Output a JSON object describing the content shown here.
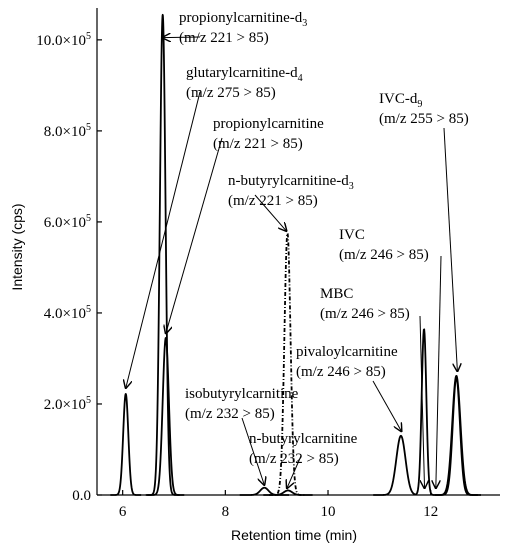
{
  "chart_data": {
    "type": "line",
    "xlabel": "Retention time (min)",
    "ylabel": "Intensity (cps)",
    "xlim": [
      5.5,
      13.35
    ],
    "ylim": [
      0,
      1070000.0
    ],
    "x_ticks": [
      {
        "v": 6,
        "label": "6"
      },
      {
        "v": 8,
        "label": "8"
      },
      {
        "v": 10,
        "label": "10"
      },
      {
        "v": 12,
        "label": "12"
      }
    ],
    "y_ticks": [
      {
        "v": 0,
        "label": "0.0"
      },
      {
        "v": 200000,
        "label": "2.0×10",
        "exp": "5"
      },
      {
        "v": 400000,
        "label": "4.0×10",
        "exp": "5"
      },
      {
        "v": 600000,
        "label": "6.0×10",
        "exp": "5"
      },
      {
        "v": 800000,
        "label": "8.0×10",
        "exp": "5"
      },
      {
        "v": 1000000,
        "label": "10.0×10",
        "exp": "5"
      }
    ],
    "series": [
      {
        "dash": "",
        "peaks": [
          {
            "rt": 6.78,
            "height": 1055000,
            "width": 0.055
          }
        ]
      },
      {
        "dash": "",
        "peaks": [
          {
            "rt": 6.06,
            "height": 222000,
            "width": 0.05
          }
        ]
      },
      {
        "dash": "",
        "peaks": [
          {
            "rt": 6.84,
            "height": 345000,
            "width": 0.06
          }
        ]
      },
      {
        "dash": "4,2,1,2",
        "peaks": [
          {
            "rt": 9.21,
            "height": 575000,
            "width": 0.06
          }
        ]
      },
      {
        "dash": "",
        "peaks": [
          {
            "rt": 8.76,
            "height": 16000,
            "width": 0.08
          }
        ]
      },
      {
        "dash": "",
        "peaks": [
          {
            "rt": 9.22,
            "height": 10000,
            "width": 0.08
          }
        ]
      },
      {
        "dash": "",
        "peaks": [
          {
            "rt": 11.42,
            "height": 130000,
            "width": 0.09
          },
          {
            "rt": 11.87,
            "height": 365000,
            "width": 0.045
          },
          {
            "rt": 12.5,
            "height": 262000,
            "width": 0.08
          }
        ]
      },
      {
        "dash": "",
        "peaks": [
          {
            "rt": 12.5,
            "height": 258000,
            "width": 0.07
          }
        ]
      }
    ],
    "annotations": [
      {
        "lines": [
          {
            "t": "propionylcarnitine-d",
            "sub": "3"
          },
          {
            "t": "(m/z 221 > 85)"
          }
        ],
        "text_x": 179,
        "text_y": 22,
        "arrow_from_x": 200,
        "arrow_from_y": 37,
        "arrow_to_rt": 6.78,
        "arrow_to_y": 1005000
      },
      {
        "lines": [
          {
            "t": "glutarylcarnitine-d",
            "sub": "4"
          },
          {
            "t": "(m/z 275 > 85)"
          }
        ],
        "text_x": 186,
        "text_y": 77,
        "arrow_from_x": 200,
        "arrow_from_y": 92,
        "arrow_to_rt": 6.06,
        "arrow_to_y": 235000
      },
      {
        "lines": [
          {
            "t": "propionylcarnitine"
          },
          {
            "t": "(m/z 221 > 85)"
          }
        ],
        "text_x": 213,
        "text_y": 128,
        "arrow_from_x": 222,
        "arrow_from_y": 138,
        "arrow_to_rt": 6.84,
        "arrow_to_y": 355000
      },
      {
        "lines": [
          {
            "t": "n-butyrylcarnitine-d",
            "sub": "3"
          },
          {
            "t": "(m/z 221 > 85)"
          }
        ],
        "text_x": 228,
        "text_y": 185,
        "arrow_from_x": 255,
        "arrow_from_y": 195,
        "arrow_to_rt": 9.19,
        "arrow_to_y": 580000
      },
      {
        "lines": [
          {
            "t": "IVC-d",
            "sub": "9"
          },
          {
            "t": "(m/z 255 > 85)"
          }
        ],
        "text_x": 379,
        "text_y": 103,
        "arrow_from_x": 444,
        "arrow_from_y": 128,
        "arrow_to_rt": 12.52,
        "arrow_to_y": 272000
      },
      {
        "lines": [
          {
            "t": "IVC"
          },
          {
            "t": "(m/z 246 > 85)"
          }
        ],
        "text_x": 339,
        "text_y": 239,
        "arrow_from_x": 441,
        "arrow_from_y": 256,
        "arrow_to_rt": 12.1,
        "arrow_to_y": 15000
      },
      {
        "lines": [
          {
            "t": "MBC"
          },
          {
            "t": "(m/z 246 > 85)"
          }
        ],
        "text_x": 320,
        "text_y": 298,
        "arrow_from_x": 420,
        "arrow_from_y": 316,
        "arrow_to_rt": 11.88,
        "arrow_to_y": 15000
      },
      {
        "lines": [
          {
            "t": "pivaloylcarnitine"
          },
          {
            "t": "(m/z 246 > 85)"
          }
        ],
        "text_x": 296,
        "text_y": 356,
        "arrow_from_x": 373,
        "arrow_from_y": 381,
        "arrow_to_rt": 11.43,
        "arrow_to_y": 140000
      },
      {
        "lines": [
          {
            "t": "isobutyrylcarnitine"
          },
          {
            "t": "(m/z 232 > 85)"
          }
        ],
        "text_x": 185,
        "text_y": 398,
        "arrow_from_x": 242,
        "arrow_from_y": 418,
        "arrow_to_rt": 8.76,
        "arrow_to_y": 22000
      },
      {
        "lines": [
          {
            "t": "n-butyrylcarnitine"
          },
          {
            "t": "(m/z 232 > 85)"
          }
        ],
        "text_x": 249,
        "text_y": 443,
        "arrow_from_x": 301,
        "arrow_from_y": 456,
        "arrow_to_rt": 9.2,
        "arrow_to_y": 15000
      }
    ]
  }
}
